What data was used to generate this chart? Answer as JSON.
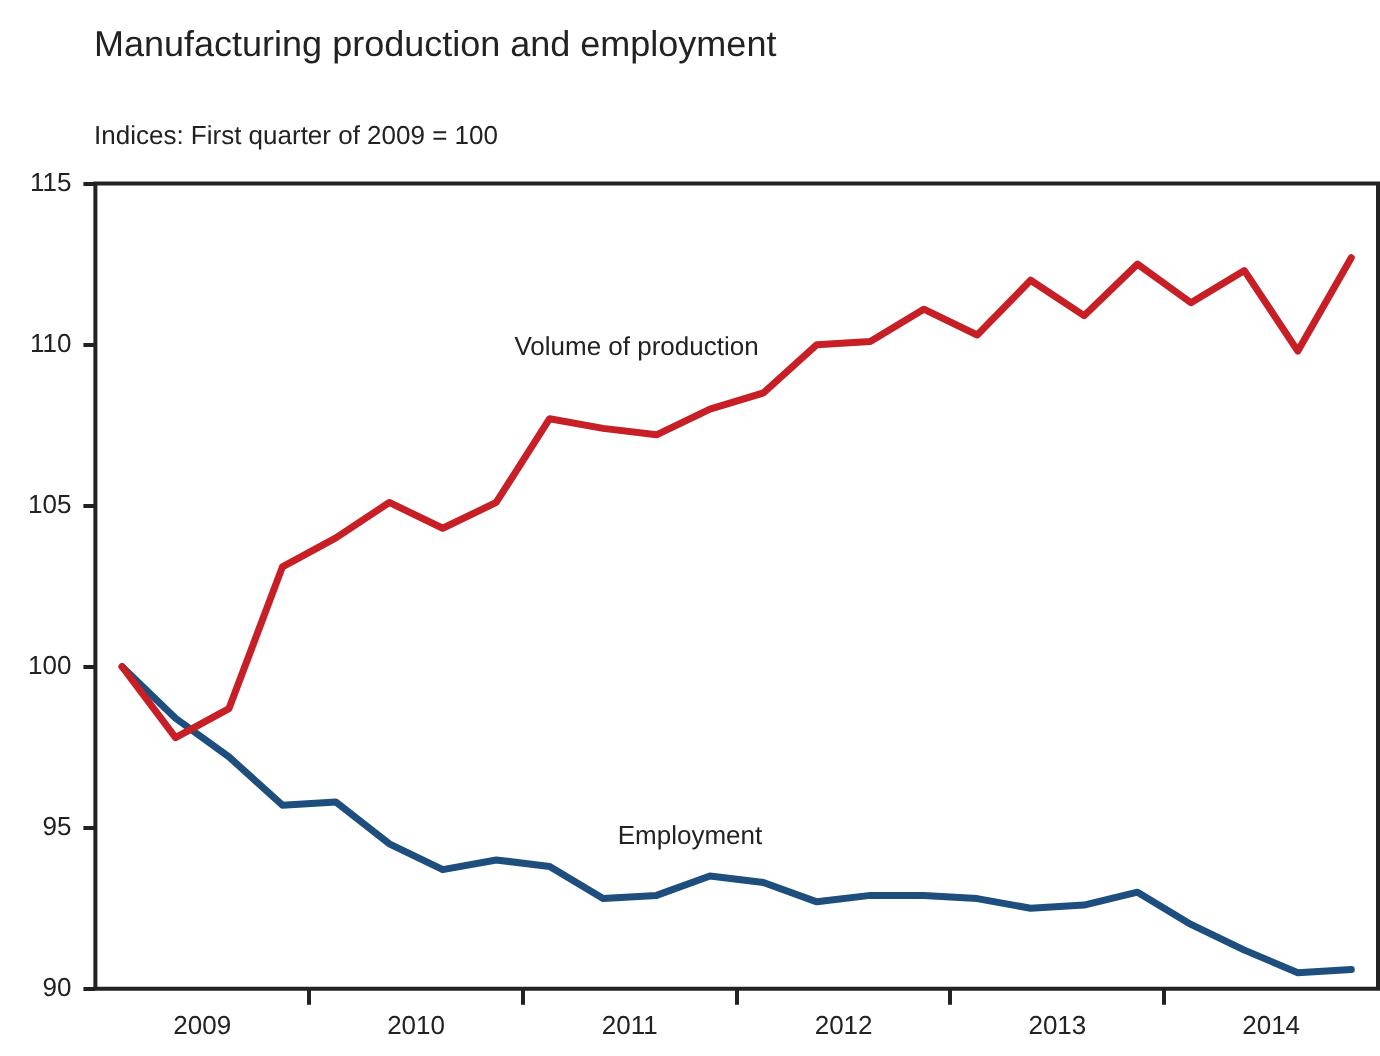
{
  "chart_data": {
    "type": "line",
    "title": "Manufacturing production and employment",
    "subtitle": "Indices: First quarter of 2009 = 100",
    "x": [
      2009.125,
      2009.375,
      2009.625,
      2009.875,
      2010.125,
      2010.375,
      2010.625,
      2010.875,
      2011.125,
      2011.375,
      2011.625,
      2011.875,
      2012.125,
      2012.375,
      2012.625,
      2012.875,
      2013.125,
      2013.375,
      2013.625,
      2013.875,
      2014.125,
      2014.375,
      2014.625,
      2014.875
    ],
    "series": [
      {
        "name": "Volume of production",
        "color": "#c81e25",
        "values": [
          100,
          97.8,
          98.7,
          103.1,
          104.0,
          105.1,
          104.3,
          105.1,
          107.7,
          107.4,
          107.2,
          108.0,
          108.5,
          110.0,
          110.1,
          111.1,
          110.3,
          112.0,
          110.9,
          112.5,
          111.3,
          112.3,
          109.8,
          112.7
        ]
      },
      {
        "name": "Employment",
        "color": "#1d4e7e",
        "values": [
          100,
          98.4,
          97.2,
          95.7,
          95.8,
          94.5,
          93.7,
          94.0,
          93.8,
          92.8,
          92.9,
          93.5,
          93.3,
          92.7,
          92.9,
          92.9,
          92.8,
          92.5,
          92.6,
          93.0,
          92.0,
          91.2,
          90.5,
          90.6
        ]
      }
    ],
    "xlim": [
      2009,
      2015
    ],
    "xticks": [
      {
        "value": 2009.5,
        "label": "2009"
      },
      {
        "value": 2010,
        "label": null
      },
      {
        "value": 2010.5,
        "label": "2010"
      },
      {
        "value": 2011,
        "label": null
      },
      {
        "value": 2011.5,
        "label": "2011"
      },
      {
        "value": 2012,
        "label": null
      },
      {
        "value": 2012.5,
        "label": "2012"
      },
      {
        "value": 2013,
        "label": null
      },
      {
        "value": 2013.5,
        "label": "2013"
      },
      {
        "value": 2014,
        "label": null
      },
      {
        "value": 2014.5,
        "label": "2014"
      }
    ],
    "ylim": [
      90,
      115
    ],
    "yticks": [
      90,
      95,
      100,
      105,
      110,
      115
    ],
    "grid": false,
    "legend": false,
    "marker": "none",
    "line_style": "solid"
  }
}
